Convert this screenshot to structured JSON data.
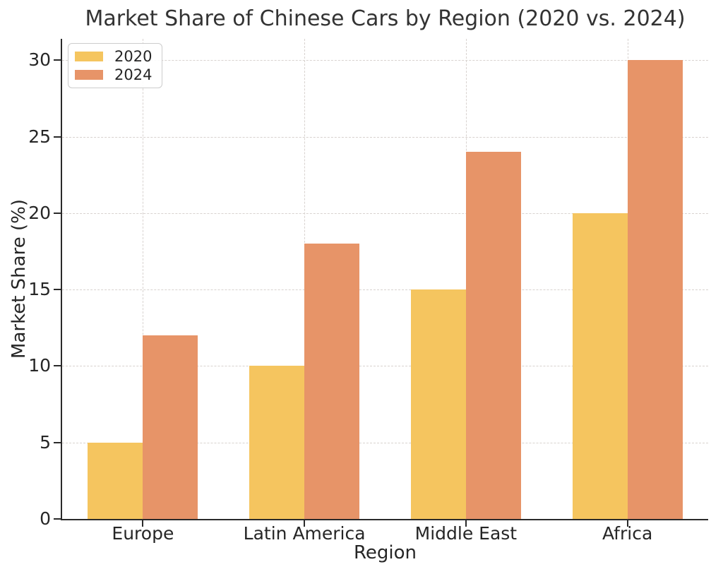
{
  "chart_data": {
    "type": "bar",
    "title": "Market Share of Chinese Cars by Region (2020 vs. 2024)",
    "xlabel": "Region",
    "ylabel": "Market Share (%)",
    "categories": [
      "Europe",
      "Latin America",
      "Middle East",
      "Africa"
    ],
    "series": [
      {
        "name": "2020",
        "color": "#F5C55F",
        "values": [
          5,
          10,
          15,
          20
        ]
      },
      {
        "name": "2024",
        "color": "#E79468",
        "values": [
          12,
          18,
          24,
          30
        ]
      }
    ],
    "yticks": [
      0,
      5,
      10,
      15,
      20,
      25,
      30
    ],
    "ylim": [
      0,
      31.4
    ],
    "grid": true,
    "grid_style": "dashed",
    "grid_color": "#d8d2cf",
    "spine_color": "#2a2a2a",
    "text_color": "#262626",
    "background": "#ffffff",
    "legend_position": "upper left",
    "legend_labels": [
      "2020",
      "2024"
    ]
  }
}
